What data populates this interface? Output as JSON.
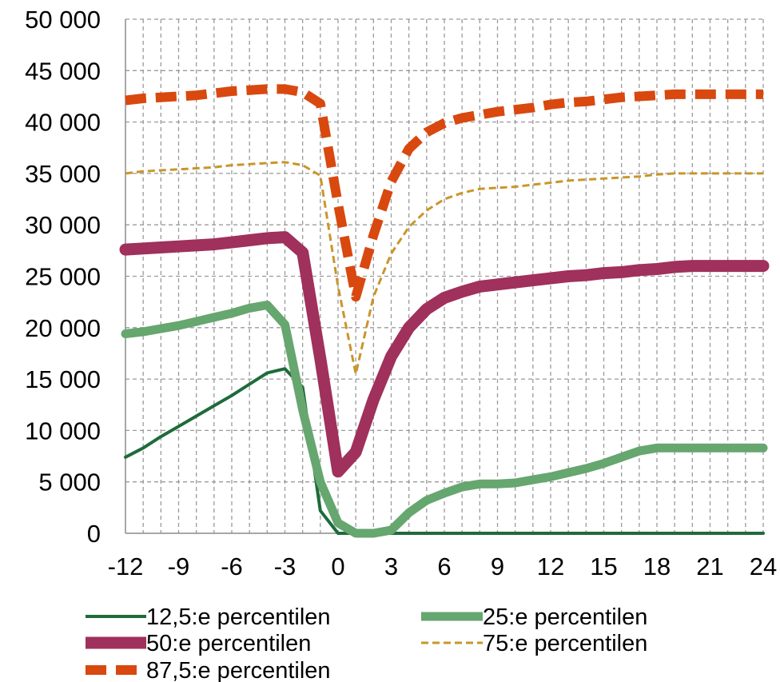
{
  "chart_data": {
    "type": "line",
    "title": "",
    "xlabel": "",
    "ylabel": "",
    "xlim": [
      -12,
      24
    ],
    "ylim": [
      0,
      50000
    ],
    "x_ticks": [
      -12,
      -9,
      -6,
      -3,
      0,
      3,
      6,
      9,
      12,
      15,
      18,
      21,
      24
    ],
    "y_ticks": [
      0,
      5000,
      10000,
      15000,
      20000,
      25000,
      30000,
      35000,
      40000,
      45000,
      50000
    ],
    "x_tick_labels": [
      "-12",
      "-9",
      "-6",
      "-3",
      "0",
      "3",
      "6",
      "9",
      "12",
      "15",
      "18",
      "21",
      "24"
    ],
    "y_tick_labels": [
      "0",
      "5 000",
      "10 000",
      "15 000",
      "20 000",
      "25 000",
      "30 000",
      "35 000",
      "40 000",
      "45 000",
      "50 000"
    ],
    "grid": "vertical and horizontal dashed",
    "legend_position": "bottom",
    "x": [
      -12,
      -11,
      -10,
      -9,
      -8,
      -7,
      -6,
      -5,
      -4,
      -3,
      -2,
      -1,
      0,
      1,
      2,
      3,
      4,
      5,
      6,
      7,
      8,
      9,
      10,
      11,
      12,
      13,
      14,
      15,
      16,
      17,
      18,
      19,
      20,
      21,
      22,
      23,
      24
    ],
    "series": [
      {
        "name": "12,5:e percentilen",
        "color": "#1e6b3a",
        "dash": "solid",
        "width": 4,
        "values": [
          7400,
          8300,
          9400,
          10400,
          11400,
          12400,
          13400,
          14500,
          15600,
          16000,
          14200,
          2200,
          0,
          0,
          0,
          0,
          0,
          0,
          0,
          0,
          0,
          0,
          0,
          0,
          0,
          0,
          0,
          0,
          0,
          0,
          0,
          0,
          0,
          0,
          0,
          0,
          0
        ]
      },
      {
        "name": "25:e percentilen",
        "color": "#66a66f",
        "dash": "solid",
        "width": 11,
        "values": [
          19400,
          19600,
          19900,
          20200,
          20600,
          21000,
          21400,
          21900,
          22200,
          20300,
          12000,
          5000,
          1000,
          0,
          0,
          300,
          2000,
          3200,
          3900,
          4500,
          4800,
          4800,
          4900,
          5200,
          5500,
          5900,
          6300,
          6800,
          7400,
          8000,
          8300,
          8300,
          8300,
          8300,
          8300,
          8300,
          8300
        ]
      },
      {
        "name": "50:e percentilen",
        "color": "#a0305c",
        "dash": "solid",
        "width": 15,
        "values": [
          27600,
          27700,
          27800,
          27900,
          28000,
          28100,
          28300,
          28500,
          28700,
          28800,
          27300,
          17000,
          6000,
          7900,
          13000,
          17200,
          20000,
          21800,
          22900,
          23500,
          24000,
          24200,
          24400,
          24600,
          24800,
          25000,
          25100,
          25300,
          25400,
          25600,
          25700,
          25900,
          26000,
          26000,
          26000,
          26000,
          26000
        ]
      },
      {
        "name": "75:e percentilen",
        "color": "#c9962a",
        "dash": "dashed",
        "width": 3,
        "values": [
          35000,
          35200,
          35300,
          35400,
          35500,
          35600,
          35800,
          35900,
          36000,
          36100,
          35800,
          34800,
          24000,
          15500,
          23000,
          27200,
          29800,
          31400,
          32500,
          33100,
          33500,
          33600,
          33700,
          33900,
          34100,
          34300,
          34400,
          34500,
          34600,
          34700,
          34900,
          35000,
          35000,
          35000,
          35000,
          35000,
          35000
        ]
      },
      {
        "name": "87,5:e percentilen",
        "color": "#d9480f",
        "dash": "dashed",
        "width": 12,
        "values": [
          42100,
          42300,
          42400,
          42500,
          42600,
          42800,
          43000,
          43100,
          43200,
          43200,
          42900,
          41800,
          32000,
          23000,
          29000,
          34200,
          37400,
          39000,
          39900,
          40400,
          40700,
          41000,
          41200,
          41400,
          41700,
          41900,
          42000,
          42200,
          42400,
          42500,
          42600,
          42700,
          42700,
          42700,
          42700,
          42700,
          42700
        ]
      }
    ]
  }
}
